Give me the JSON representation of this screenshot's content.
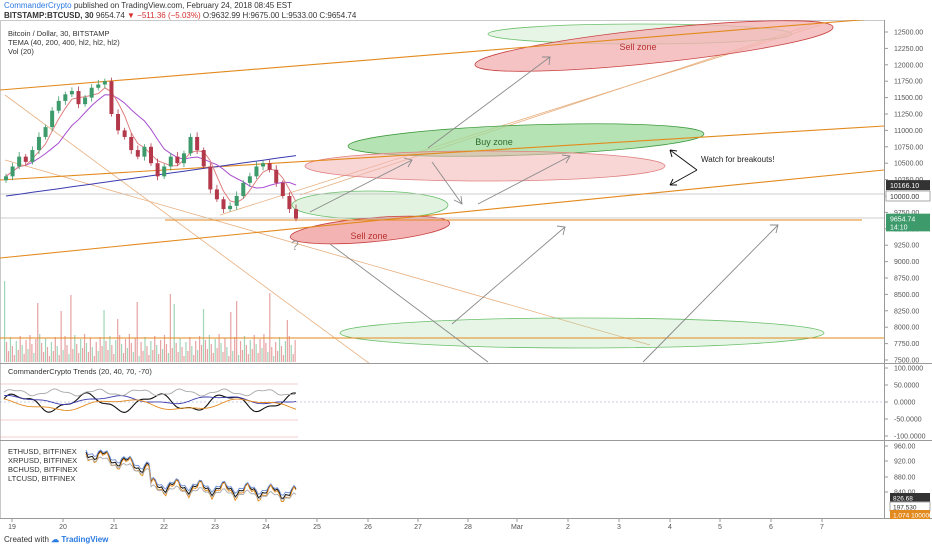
{
  "header": {
    "author": "CommanderCrypto",
    "published": "published on TradingView.com, February 24, 2018 08:45 EST",
    "symbol": "BITSTAMP:BTCUSD, 30",
    "last": "9654.74",
    "change": "▼ −511.36 (−5.03%)",
    "ohlc": "O:9632.99 H:9675.00 L:9533.00 C:9654.74"
  },
  "legends": {
    "main": [
      "Bitcoin / Dollar, 30, BITSTAMP",
      "TEMA (40, 200, 400, hl2, hl2, hl2)",
      "Vol (20)"
    ],
    "trends": "CommanderCrypto Trends (20, 40, 70, -70)",
    "compare": [
      "ETHUSD, BITFINEX",
      "XRPUSD, BITFINEX",
      "BCHUSD, BITFINEX",
      "LTCUSD, BITFINEX"
    ]
  },
  "annotations": {
    "sell_zone_top": "Sell zone",
    "buy_zone": "Buy zone",
    "sell_zone_low": "Sell zone",
    "breakouts": "Watch for breakouts!",
    "question": "?"
  },
  "footer": {
    "created": "Created with",
    "brand": "TradingView"
  },
  "colors": {
    "up": "#3c9a6b",
    "down": "#b2384a",
    "pink": "#e08080",
    "blue": "#3b3bb0",
    "orange": "#e38a1e",
    "buy_fill": "#9ed99a",
    "sell_fill": "#f3b4b4"
  },
  "chart_data": {
    "type": "candlestick",
    "title": "Bitcoin / Dollar, 30, BITSTAMP",
    "x_ticks": [
      "19",
      "20",
      "21",
      "22",
      "23",
      "24",
      "25",
      "26",
      "27",
      "28",
      "Mar",
      "2",
      "3",
      "4",
      "5",
      "6",
      "7"
    ],
    "y_ticks": [
      7500,
      7750,
      8000,
      8250,
      8500,
      8750,
      9000,
      9250,
      9500,
      9750,
      10000,
      10250,
      10500,
      10750,
      11000,
      11250,
      11500,
      11750,
      12000,
      12250,
      12500
    ],
    "ylim": [
      7450,
      12650
    ],
    "price_labels": [
      {
        "value": 10166.1,
        "text": "10166.10",
        "style": "dark"
      },
      {
        "value": 10000.0,
        "text": "10000.00",
        "style": "light"
      },
      {
        "value": 9654.74,
        "text": "9654.74",
        "style": "green"
      },
      {
        "value": 9537,
        "text": "14:10",
        "style": "green"
      }
    ],
    "close_series": [
      10300,
      10450,
      10600,
      10520,
      10700,
      10900,
      11050,
      11300,
      11450,
      11550,
      11600,
      11400,
      11500,
      11650,
      11700,
      11750,
      11250,
      11000,
      10900,
      10700,
      10600,
      10750,
      10500,
      10300,
      10450,
      10600,
      10500,
      10650,
      10900,
      10700,
      10450,
      10100,
      9950,
      9800,
      9850,
      10000,
      10200,
      10300,
      10450,
      10500,
      10400,
      10200,
      10000,
      9800,
      9654.74
    ],
    "series": [
      {
        "name": "TEMA 40",
        "color": "#e08080"
      },
      {
        "name": "TEMA 200",
        "color": "#a94fd0"
      },
      {
        "name": "TEMA 400",
        "color": "#3b3bb0"
      }
    ],
    "osc_ticks": [
      100,
      50,
      0,
      -50,
      -100
    ],
    "osc_labels": [
      "100.0000",
      "50.0000",
      "0.0000",
      "-50.0000",
      "-100.0000"
    ],
    "compare_ticks": [
      "960.00",
      "920.00",
      "880.00",
      "840.00"
    ],
    "compare_labels": [
      {
        "text": "826.68",
        "style": "dark"
      },
      {
        "text": "197.530",
        "style": "light"
      },
      {
        "text": "1.074 100000",
        "style": "orange"
      }
    ]
  }
}
